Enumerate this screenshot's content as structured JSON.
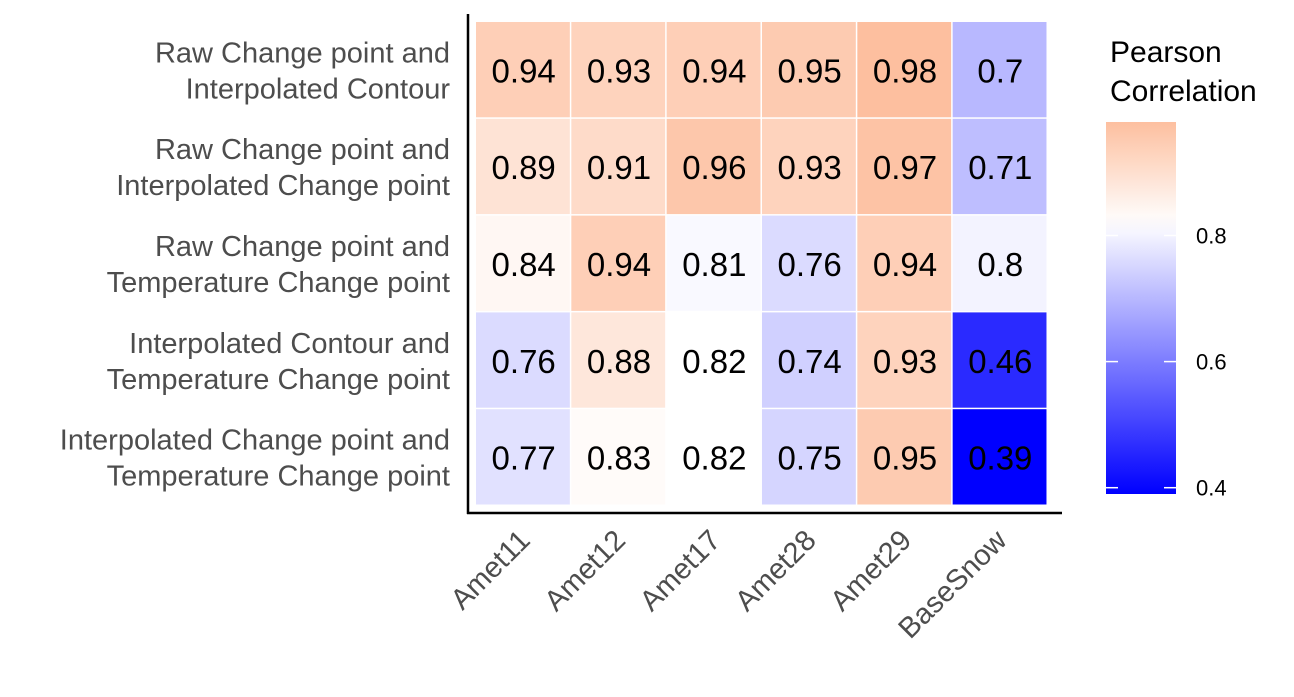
{
  "chart_data": {
    "type": "heatmap",
    "rows": [
      [
        "Raw Change point and",
        "Interpolated Contour"
      ],
      [
        "Raw Change point and",
        "Interpolated Change point"
      ],
      [
        "Raw Change point and",
        "Temperature Change point"
      ],
      [
        "Interpolated Contour and",
        "Temperature Change point"
      ],
      [
        "Interpolated Change point and",
        "Temperature Change point"
      ]
    ],
    "columns": [
      "Amet11",
      "Amet12",
      "Amet17",
      "Amet28",
      "Amet29",
      "BaseSnow"
    ],
    "values": [
      [
        0.94,
        0.93,
        0.94,
        0.95,
        0.98,
        0.7
      ],
      [
        0.89,
        0.91,
        0.96,
        0.93,
        0.97,
        0.71
      ],
      [
        0.84,
        0.94,
        0.81,
        0.76,
        0.94,
        0.8
      ],
      [
        0.76,
        0.88,
        0.82,
        0.74,
        0.93,
        0.46
      ],
      [
        0.77,
        0.83,
        0.82,
        0.75,
        0.95,
        0.39
      ]
    ],
    "legend": {
      "title": [
        "Pearson",
        "Correlation"
      ],
      "ticks": [
        0.4,
        0.6,
        0.8
      ],
      "range": [
        0.39,
        0.98
      ],
      "midpoint": 0.82,
      "placement": "right"
    },
    "colors": {
      "low": "#0000ff",
      "mid": "#ffffff",
      "high": "#fdbf9f"
    }
  }
}
